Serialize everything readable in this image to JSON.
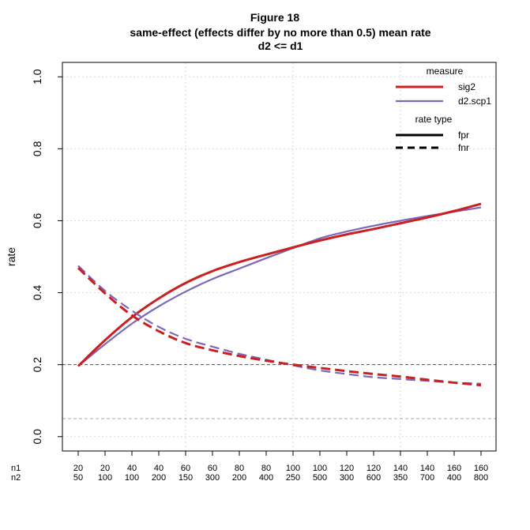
{
  "chart_data": {
    "type": "line",
    "title": "Figure 18",
    "subtitle": "same-effect (effects differ by no more than 0.5) mean rate",
    "subtitle2": "d2 <= d1",
    "ylabel": "rate",
    "ylim": [
      -0.04,
      1.04
    ],
    "yticks": [
      "0.0",
      "0.2",
      "0.4",
      "0.6",
      "0.8",
      "1.0"
    ],
    "x_row_labels": [
      "n1",
      "n2"
    ],
    "x_n1": [
      "20",
      "20",
      "40",
      "40",
      "60",
      "60",
      "80",
      "80",
      "100",
      "100",
      "120",
      "120",
      "140",
      "140",
      "160",
      "160"
    ],
    "x_n2": [
      "50",
      "100",
      "100",
      "200",
      "150",
      "300",
      "200",
      "400",
      "250",
      "500",
      "300",
      "600",
      "350",
      "700",
      "400",
      "800"
    ],
    "hlines": [
      {
        "y": 0.2,
        "style": "dashed",
        "color": "#555555"
      },
      {
        "y": 0.05,
        "style": "dashed",
        "color": "#aaaaaa"
      }
    ],
    "grid": true,
    "series": [
      {
        "name": "sig2",
        "measure": "sig2",
        "rate_type": "fpr",
        "color": "#cc1f1f",
        "dash": "solid",
        "values": [
          0.196,
          0.268,
          0.332,
          0.384,
          0.427,
          0.46,
          0.485,
          0.506,
          0.526,
          0.545,
          0.562,
          0.577,
          0.593,
          0.609,
          0.627,
          0.647
        ]
      },
      {
        "name": "d2.scp1",
        "measure": "d2.scp1",
        "rate_type": "fpr",
        "color": "#7b68b8",
        "dash": "solid",
        "values": [
          0.196,
          0.257,
          0.314,
          0.362,
          0.403,
          0.438,
          0.467,
          0.496,
          0.524,
          0.551,
          0.57,
          0.586,
          0.6,
          0.613,
          0.625,
          0.637
        ]
      },
      {
        "name": "sig2",
        "measure": "sig2",
        "rate_type": "fnr",
        "color": "#cc1f1f",
        "dash": "dashed",
        "values": [
          0.469,
          0.398,
          0.337,
          0.293,
          0.26,
          0.24,
          0.224,
          0.211,
          0.2,
          0.191,
          0.182,
          0.174,
          0.167,
          0.158,
          0.15,
          0.143
        ]
      },
      {
        "name": "d2.scp1",
        "measure": "d2.scp1",
        "rate_type": "fnr",
        "color": "#7b68b8",
        "dash": "dashed",
        "values": [
          0.475,
          0.405,
          0.35,
          0.305,
          0.272,
          0.25,
          0.23,
          0.214,
          0.198,
          0.184,
          0.174,
          0.165,
          0.16,
          0.155,
          0.15,
          0.147
        ]
      }
    ],
    "legend": {
      "position": "top-right",
      "measure_title": "measure",
      "measure_items": [
        {
          "label": "sig2",
          "color": "#cc1f1f"
        },
        {
          "label": "d2.scp1",
          "color": "#7b68b8"
        }
      ],
      "rate_title": "rate type",
      "rate_items": [
        {
          "label": "fpr",
          "dash": "solid"
        },
        {
          "label": "fnr",
          "dash": "dashed"
        }
      ]
    }
  }
}
